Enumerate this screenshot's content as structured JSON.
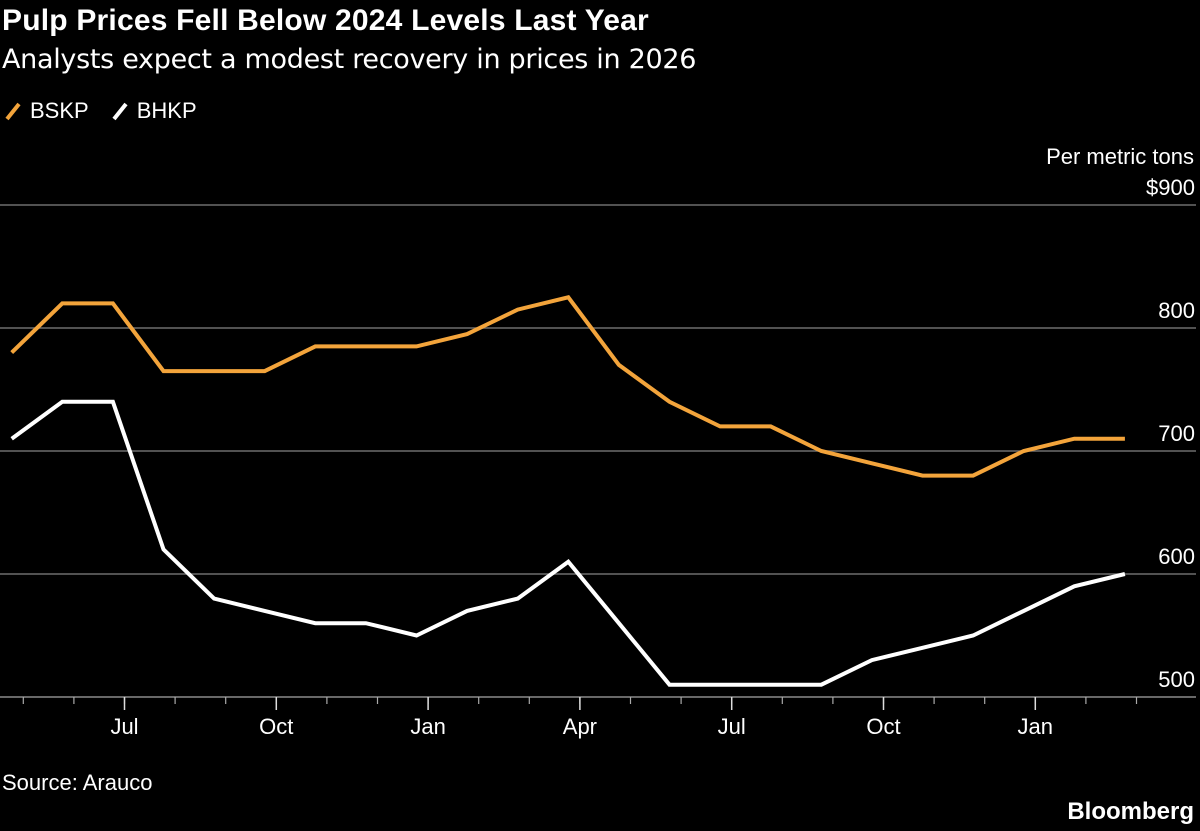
{
  "chart_data": {
    "type": "line",
    "title": "Pulp Prices Fell Below 2024 Levels Last Year",
    "subtitle": "Analysts expect a modest recovery in prices in 2026",
    "ylabel": "Per metric tons",
    "source": "Source: Arauco",
    "brand": "Bloomberg",
    "ylim": [
      500,
      900
    ],
    "yticks": [
      {
        "value": 900,
        "label": "$900"
      },
      {
        "value": 800,
        "label": "800"
      },
      {
        "value": 700,
        "label": "700"
      },
      {
        "value": 600,
        "label": "600"
      },
      {
        "value": 500,
        "label": "500"
      }
    ],
    "xticks": [
      {
        "date": "2024-07",
        "label": "Jul"
      },
      {
        "date": "2024-10",
        "label": "Oct"
      },
      {
        "date": "2025-01",
        "label": "Jan"
      },
      {
        "date": "2025-04",
        "label": "Apr"
      },
      {
        "date": "2025-07",
        "label": "Jul"
      },
      {
        "date": "2025-10",
        "label": "Oct"
      },
      {
        "date": "2026-01",
        "label": "Jan"
      }
    ],
    "grid": true,
    "legend": "top-left",
    "x": [
      "2024-04",
      "2024-05",
      "2024-06",
      "2024-07",
      "2024-08",
      "2024-09",
      "2024-10",
      "2024-11",
      "2024-12",
      "2025-01",
      "2025-02",
      "2025-03",
      "2025-04",
      "2025-05",
      "2025-06",
      "2025-07",
      "2025-08",
      "2025-09",
      "2025-10",
      "2025-11",
      "2025-12",
      "2026-01",
      "2026-02"
    ],
    "series": [
      {
        "name": "BSKP",
        "color": "#f3a43b",
        "values": [
          780,
          820,
          820,
          765,
          765,
          765,
          785,
          785,
          785,
          795,
          815,
          825,
          770,
          740,
          720,
          720,
          700,
          690,
          680,
          680,
          700,
          710,
          710
        ]
      },
      {
        "name": "BHKP",
        "color": "#ffffff",
        "values": [
          710,
          740,
          740,
          620,
          580,
          570,
          560,
          560,
          550,
          570,
          580,
          610,
          560,
          510,
          510,
          510,
          510,
          530,
          540,
          550,
          570,
          590,
          600
        ]
      }
    ]
  }
}
